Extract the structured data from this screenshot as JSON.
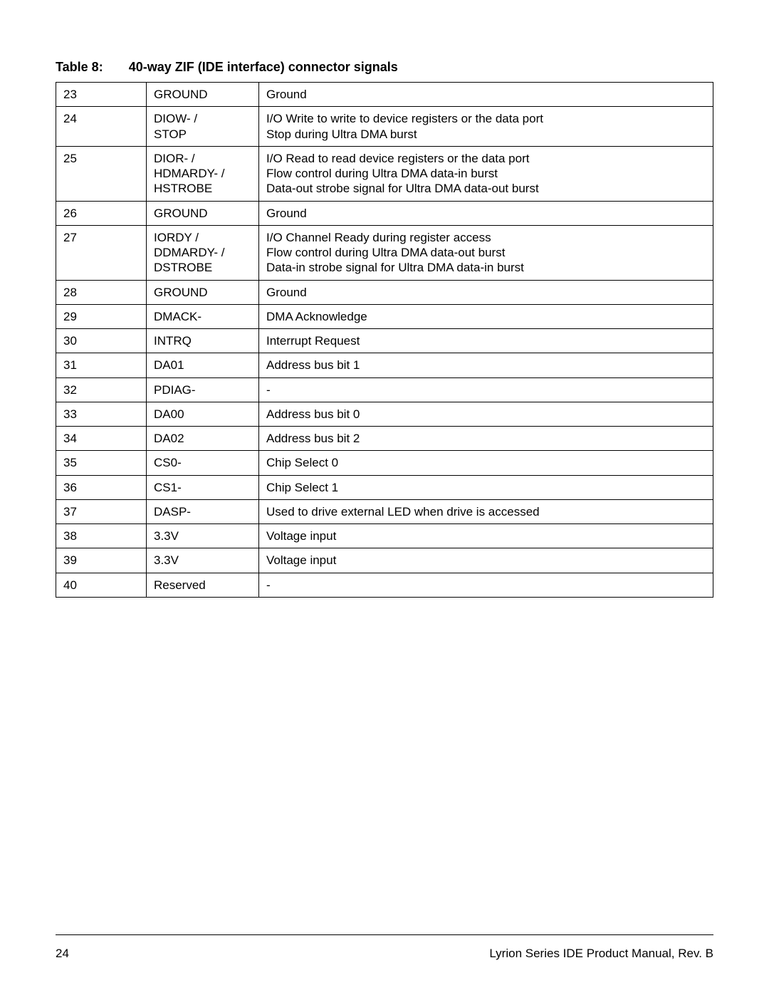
{
  "caption": {
    "number": "Table 8:",
    "title": "40-way ZIF (IDE interface) connector signals"
  },
  "table": {
    "rows": [
      {
        "pin": "23",
        "name": "GROUND",
        "desc": "Ground"
      },
      {
        "pin": "24",
        "name": "DIOW- /\nSTOP",
        "desc": "I/O Write to write to device registers or the data port\nStop during Ultra DMA burst"
      },
      {
        "pin": "25",
        "name": "DIOR- /\nHDMARDY- /\nHSTROBE",
        "desc": "I/O Read to read device registers or the data port\nFlow control during Ultra DMA data-in burst\nData-out strobe signal for Ultra DMA data-out burst"
      },
      {
        "pin": "26",
        "name": "GROUND",
        "desc": "Ground"
      },
      {
        "pin": "27",
        "name": "IORDY /\nDDMARDY- /\nDSTROBE",
        "desc": "I/O Channel Ready during register access\nFlow control during Ultra DMA data-out burst\nData-in strobe signal for Ultra DMA data-in burst"
      },
      {
        "pin": "28",
        "name": "GROUND",
        "desc": "Ground"
      },
      {
        "pin": "29",
        "name": "DMACK-",
        "desc": "DMA Acknowledge"
      },
      {
        "pin": "30",
        "name": "INTRQ",
        "desc": "Interrupt Request"
      },
      {
        "pin": "31",
        "name": "DA01",
        "desc": "Address bus bit 1"
      },
      {
        "pin": "32",
        "name": "PDIAG-",
        "desc": "-"
      },
      {
        "pin": "33",
        "name": "DA00",
        "desc": "Address bus bit 0"
      },
      {
        "pin": "34",
        "name": "DA02",
        "desc": "Address bus bit 2"
      },
      {
        "pin": "35",
        "name": "CS0-",
        "desc": "Chip Select 0"
      },
      {
        "pin": "36",
        "name": "CS1-",
        "desc": "Chip Select 1"
      },
      {
        "pin": "37",
        "name": "DASP-",
        "desc": "Used to drive external LED when drive is accessed"
      },
      {
        "pin": "38",
        "name": "3.3V",
        "desc": "Voltage input"
      },
      {
        "pin": "39",
        "name": "3.3V",
        "desc": "Voltage input"
      },
      {
        "pin": "40",
        "name": "Reserved",
        "desc": "-"
      }
    ]
  },
  "footer": {
    "page": "24",
    "doc": "Lyrion Series IDE Product Manual, Rev. B"
  }
}
